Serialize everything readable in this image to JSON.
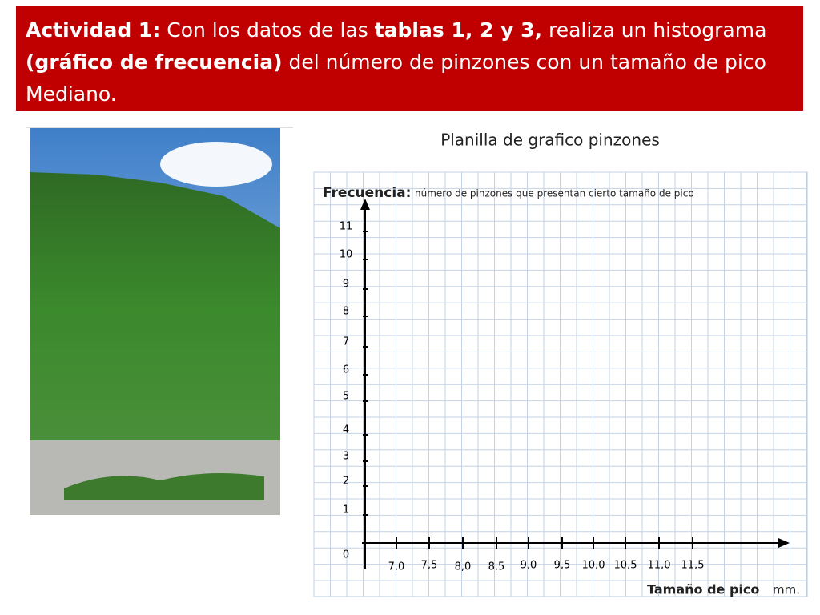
{
  "banner": {
    "segments": [
      {
        "text": "Actividad 1:",
        "bold": true
      },
      {
        "text": " Con los datos de las ",
        "bold": false
      },
      {
        "text": "tablas 1, 2 y 3,",
        "bold": true
      },
      {
        "text": " realiza un histograma ",
        "bold": false
      },
      {
        "text": "(gráfico de frecuencia)",
        "bold": true
      },
      {
        "text": " del número de pinzones con un tamaño de pico Mediano.",
        "bold": false
      }
    ]
  },
  "template": {
    "title": "Planilla de grafico pinzones",
    "y_label": "Frecuencia:",
    "y_desc": "número de pinzones que presentan cierto tamaño  de  pico",
    "y_ticks": [
      "11",
      "10",
      "9",
      "8",
      "7",
      "6",
      "5",
      "4",
      "3",
      "2",
      "1"
    ],
    "origin": "0",
    "x_ticks": [
      "7,0",
      "7,5",
      "8,0",
      "8,5",
      "9,0",
      "9,5",
      "10,0",
      "10,5",
      "11,0",
      "11,5"
    ],
    "x_label": "Tamaño de pico",
    "x_unit": "mm."
  }
}
